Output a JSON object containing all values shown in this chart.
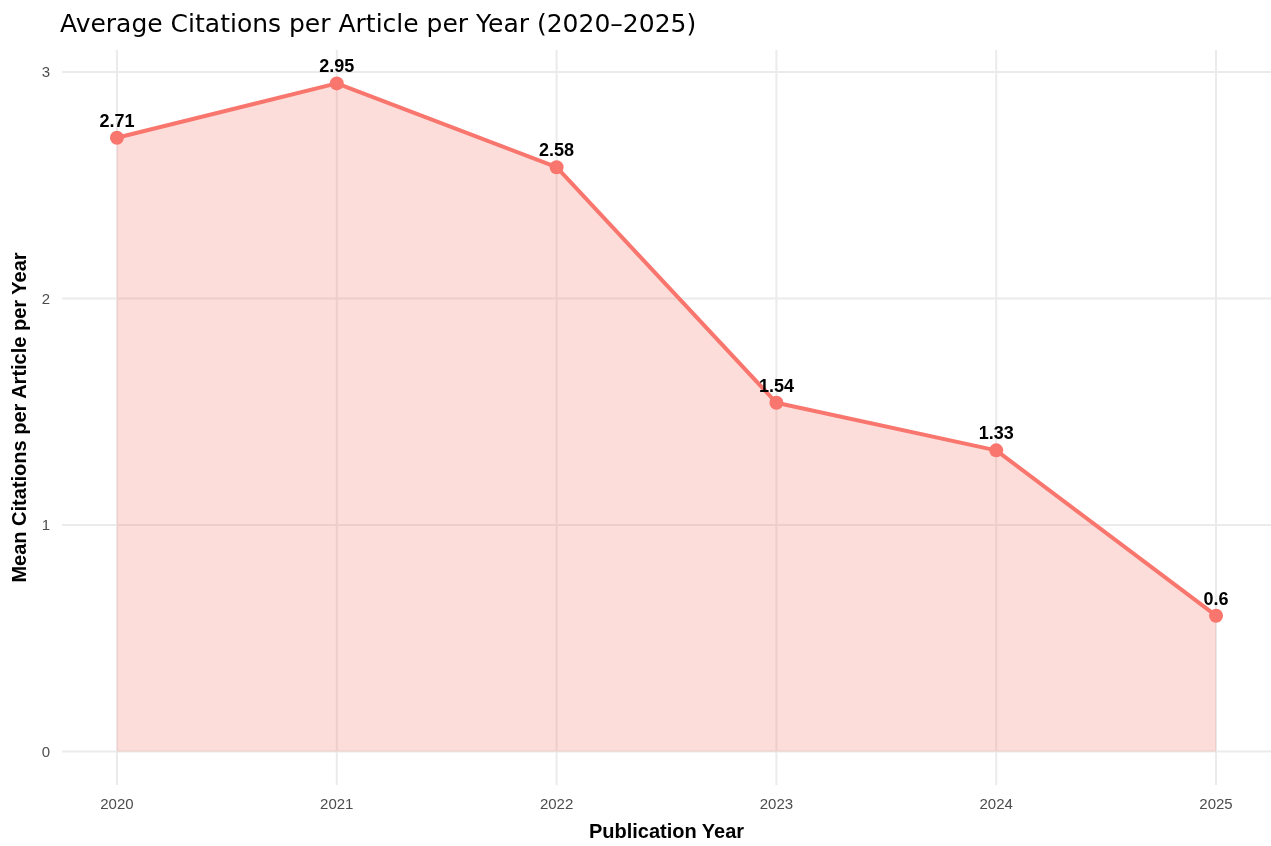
{
  "chart_data": {
    "type": "area",
    "title": "Average Citations per Article per Year (2020–2025)",
    "xlabel": "Publication Year",
    "ylabel": "Mean Citations per Article per Year",
    "x": [
      2020,
      2021,
      2022,
      2023,
      2024,
      2025
    ],
    "series": [
      {
        "color": "#f8766d",
        "values": [
          2.71,
          2.95,
          2.58,
          1.54,
          1.33,
          0.6
        ]
      }
    ],
    "xlim": [
      2019.75,
      2025.25
    ],
    "ylim": [
      -0.1475,
      3.0975
    ],
    "xticks": [
      2020,
      2021,
      2022,
      2023,
      2024,
      2025
    ],
    "yticks": [
      0,
      1,
      2,
      3
    ],
    "grid": true,
    "marker": "circle",
    "data_labels": true
  }
}
